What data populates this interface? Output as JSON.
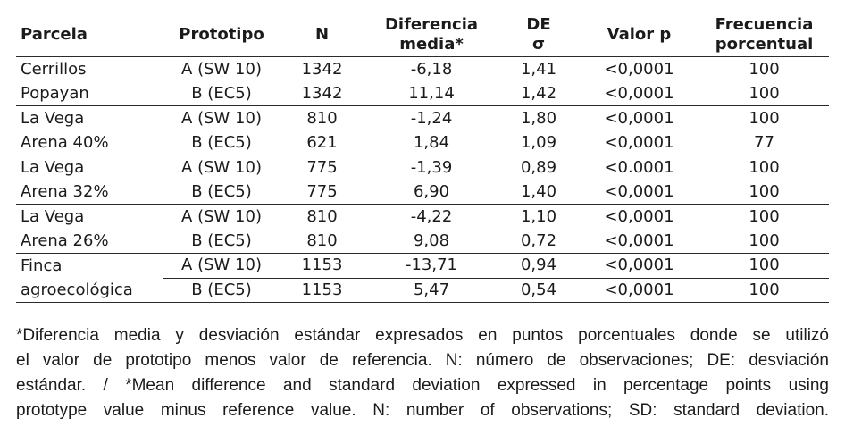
{
  "table": {
    "headers": [
      "Parcela",
      "Prototipo",
      "N",
      "Diferencia\nmedia*",
      "DE\nσ",
      "Valor p",
      "Frecuencia\nporcentual"
    ],
    "rows": [
      {
        "parcela": "Cerrillos",
        "prototipo": "A (SW 10)",
        "n": "1342",
        "diferencia_media": "-6,18",
        "de": "1,41",
        "valor_p": "<0,0001",
        "frecuencia": "100"
      },
      {
        "parcela": "Popayan",
        "prototipo": "B (EC5)",
        "n": "1342",
        "diferencia_media": "11,14",
        "de": "1,42",
        "valor_p": "<0,0001",
        "frecuencia": "100"
      },
      {
        "parcela": "La Vega",
        "prototipo": "A (SW 10)",
        "n": "810",
        "diferencia_media": "-1,24",
        "de": "1,80",
        "valor_p": "<0,0001",
        "frecuencia": "100"
      },
      {
        "parcela": "Arena 40%",
        "prototipo": "B (EC5)",
        "n": "621",
        "diferencia_media": "1,84",
        "de": "1,09",
        "valor_p": "<0,0001",
        "frecuencia": "77"
      },
      {
        "parcela": "La Vega",
        "prototipo": "A (SW 10)",
        "n": "775",
        "diferencia_media": "-1,39",
        "de": "0,89",
        "valor_p": "<0.0001",
        "frecuencia": "100"
      },
      {
        "parcela": "Arena 32%",
        "prototipo": "B (EC5)",
        "n": "775",
        "diferencia_media": "6,90",
        "de": "1,40",
        "valor_p": "<0,0001",
        "frecuencia": "100"
      },
      {
        "parcela": "La Vega",
        "prototipo": "A (SW 10)",
        "n": "810",
        "diferencia_media": "-4,22",
        "de": "1,10",
        "valor_p": "<0,0001",
        "frecuencia": "100"
      },
      {
        "parcela": "Arena 26%",
        "prototipo": "B (EC5)",
        "n": "810",
        "diferencia_media": "9,08",
        "de": "0,72",
        "valor_p": "<0,0001",
        "frecuencia": "100"
      },
      {
        "parcela": "Finca",
        "prototipo": "A (SW 10)",
        "n": "1153",
        "diferencia_media": "-13,71",
        "de": "0,94",
        "valor_p": "<0,0001",
        "frecuencia": "100"
      },
      {
        "parcela": "agroecológica",
        "prototipo": "B (EC5)",
        "n": "1153",
        "diferencia_media": "5,47",
        "de": "0,54",
        "valor_p": "<0,0001",
        "frecuencia": "100"
      }
    ]
  },
  "footnote": {
    "lines": [
      "*Diferencia media y desviación estándar expresados en puntos porcentuales donde se utilizó",
      "el valor de prototipo menos valor de referencia. N: número de observaciones; DE: desviación",
      "estándar. / *Mean difference and standard deviation expressed in percentage points using",
      "prototype value minus reference value. N: number of observations; SD: standard deviation."
    ]
  }
}
